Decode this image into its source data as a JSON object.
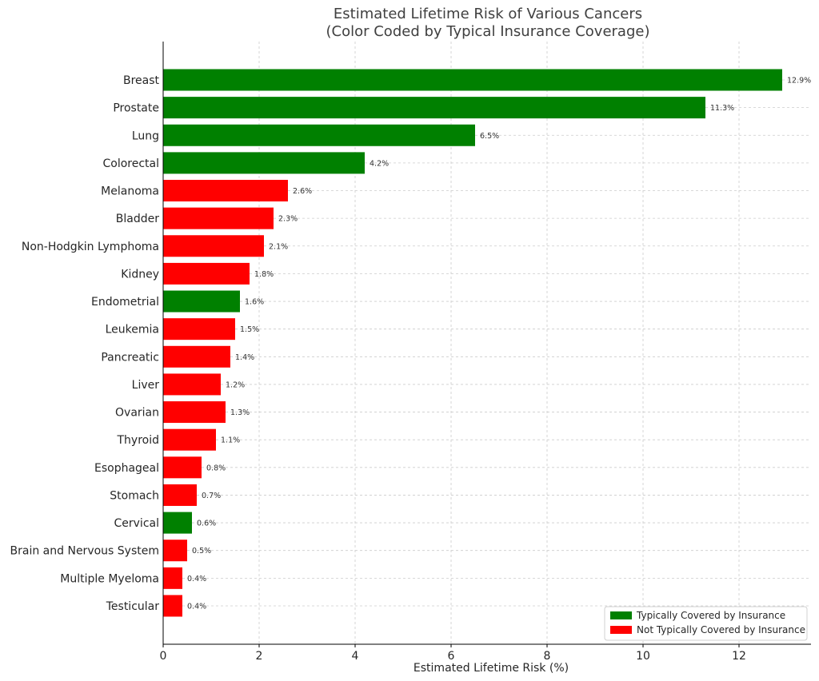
{
  "chart_data": {
    "type": "bar",
    "orientation": "horizontal",
    "title_lines": [
      "Estimated Lifetime Risk of Various Cancers",
      "(Color Coded by Typical Insurance Coverage)"
    ],
    "xlabel": "Estimated Lifetime Risk (%)",
    "ylabel": "",
    "xlim": [
      0,
      13.5
    ],
    "xticks": [
      0,
      2,
      4,
      6,
      8,
      10,
      12
    ],
    "grid": true,
    "legend_position": "bottom-right",
    "legend": [
      {
        "label": "Typically Covered by Insurance",
        "color": "#008000",
        "group": "covered"
      },
      {
        "label": "Not Typically Covered by Insurance",
        "color": "#ff0000",
        "group": "not_covered"
      }
    ],
    "categories": [
      "Breast",
      "Prostate",
      "Lung",
      "Colorectal",
      "Melanoma",
      "Bladder",
      "Non-Hodgkin Lymphoma",
      "Kidney",
      "Endometrial",
      "Leukemia",
      "Pancreatic",
      "Liver",
      "Ovarian",
      "Thyroid",
      "Esophageal",
      "Stomach",
      "Cervical",
      "Brain and Nervous System",
      "Multiple Myeloma",
      "Testicular"
    ],
    "values": [
      12.9,
      11.3,
      6.5,
      4.2,
      2.6,
      2.3,
      2.1,
      1.8,
      1.6,
      1.5,
      1.4,
      1.2,
      1.3,
      1.1,
      0.8,
      0.7,
      0.6,
      0.5,
      0.4,
      0.4
    ],
    "value_labels": [
      "12.9%",
      "11.3%",
      "6.5%",
      "4.2%",
      "2.6%",
      "2.3%",
      "2.1%",
      "1.8%",
      "1.6%",
      "1.5%",
      "1.4%",
      "1.2%",
      "1.3%",
      "1.1%",
      "0.8%",
      "0.7%",
      "0.6%",
      "0.5%",
      "0.4%",
      "0.4%"
    ],
    "coverage": [
      "covered",
      "covered",
      "covered",
      "covered",
      "not_covered",
      "not_covered",
      "not_covered",
      "not_covered",
      "covered",
      "not_covered",
      "not_covered",
      "not_covered",
      "not_covered",
      "not_covered",
      "not_covered",
      "not_covered",
      "covered",
      "not_covered",
      "not_covered",
      "not_covered"
    ]
  }
}
